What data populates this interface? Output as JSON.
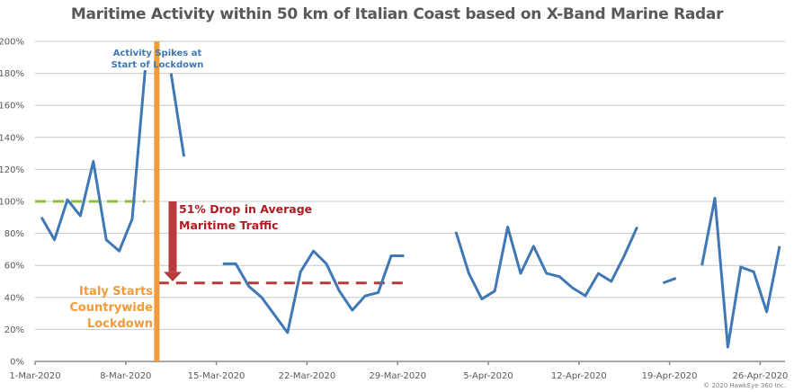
{
  "chart_data": {
    "type": "line",
    "title": "Maritime Activity within 50 km of Italian Coast based on X-Band Marine Radar",
    "xlabel": "",
    "ylabel": "",
    "x_unit": "days since 1-Mar-2020",
    "xlim": [
      0,
      58.6
    ],
    "ylim": [
      0,
      200
    ],
    "grid": true,
    "y_ticks": [
      0,
      20,
      40,
      60,
      80,
      100,
      120,
      140,
      160,
      180,
      200
    ],
    "y_tick_labels": [
      "0%",
      "20%",
      "40%",
      "60%",
      "80%",
      "100%",
      "120%",
      "140%",
      "160%",
      "180%",
      "200%"
    ],
    "x_ticks": [
      0,
      7,
      14,
      21,
      28,
      35,
      42,
      49,
      56
    ],
    "x_tick_labels": [
      "1-Mar-2020",
      "8-Mar-2020",
      "15-Mar-2020",
      "22-Mar-2020",
      "29-Mar-2020",
      "5-Apr-2020",
      "12-Apr-2020",
      "19-Apr-2020",
      "26-Apr-2020"
    ],
    "series": [
      {
        "name": "Maritime Activity",
        "color": "#3f78b5",
        "x": [
          0.5,
          1.5,
          2.5,
          3.5,
          4.5,
          5.5,
          6.5,
          7.5,
          8.5,
          9.5,
          10.5,
          11.5,
          12.5,
          13.5,
          14.5,
          15.5,
          16.5,
          17.5,
          18.5,
          19.5,
          20.5,
          21.5,
          22.5,
          23.5,
          24.5,
          25.5,
          26.5,
          27.5,
          28.5,
          29.5,
          30.5,
          31.5,
          32.5,
          33.5,
          34.5,
          35.5,
          36.5,
          37.5,
          38.5,
          39.5,
          40.5,
          41.5,
          42.5,
          43.5,
          44.5,
          45.5,
          46.5,
          47.5,
          48.5,
          49.5,
          50.5,
          51.5,
          52.5,
          53.5,
          54.5,
          55.5,
          56.5,
          57.5
        ],
        "values": [
          90,
          76,
          101,
          91,
          125,
          76,
          69,
          89,
          182,
          null,
          180,
          128,
          null,
          null,
          61,
          61,
          47,
          40,
          29,
          18,
          56,
          69,
          61,
          44,
          32,
          41,
          43,
          66,
          66,
          null,
          null,
          null,
          81,
          55,
          39,
          44,
          84,
          55,
          72,
          55,
          53,
          46,
          41,
          55,
          50,
          66,
          84,
          null,
          49,
          52,
          null,
          60,
          102,
          9,
          59,
          56,
          31,
          72
        ]
      }
    ],
    "reference_lines": [
      {
        "name": "pre-lockdown average",
        "value": 100,
        "x_range": [
          0,
          8.5
        ],
        "color": "#8fbf3f",
        "style": "dashed"
      },
      {
        "name": "post-lockdown average",
        "value": 49,
        "x_range": [
          9.5,
          28.5
        ],
        "color": "#b93a3a",
        "style": "dashed"
      },
      {
        "name": "lockdown start",
        "x": 9.4,
        "color": "#f39a3c",
        "style": "vertical"
      }
    ],
    "annotations": {
      "spike": [
        "Activity Spikes at",
        "Start of Lockdown"
      ],
      "drop": [
        "51% Drop in Average",
        "Maritime Traffic"
      ],
      "lockdown": [
        "Italy Starts",
        "Countrywide",
        "Lockdown"
      ]
    },
    "copyright": "© 2020 HawkEye 360 Inc."
  }
}
